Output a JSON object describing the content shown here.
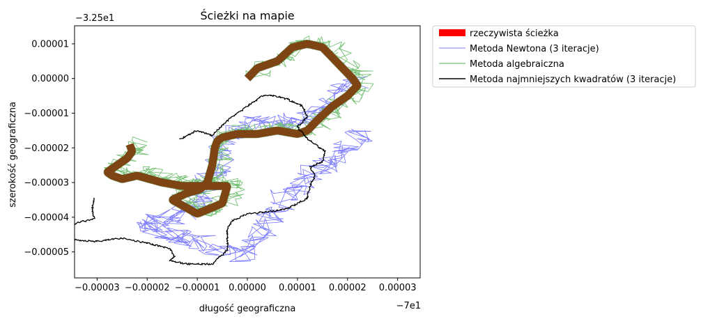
{
  "chart_data": {
    "type": "line",
    "title": "Ścieżki na mapie",
    "xlabel": "długość geograficzna",
    "ylabel": "szerokość geograficzna",
    "x_offset_label": "−7e1",
    "y_offset_label": "−3.25e1",
    "xlim": [
      -3.45e-05,
      3.45e-05
    ],
    "ylim": [
      -5.75e-05,
      1.52e-05
    ],
    "x_ticks": [
      -3e-05,
      -2e-05,
      -1e-05,
      0,
      1e-05,
      2e-05,
      3e-05
    ],
    "x_tick_labels": [
      "−0.00003",
      "−0.00002",
      "−0.00001",
      "0.00000",
      "0.00001",
      "0.00002",
      "0.00003"
    ],
    "y_ticks": [
      1e-05,
      0,
      -1e-05,
      -2e-05,
      -3e-05,
      -4e-05,
      -5e-05
    ],
    "y_tick_labels": [
      "0.00001",
      "0.00000",
      "−0.00001",
      "−0.00002",
      "−0.00003",
      "−0.00004",
      "−0.00005"
    ],
    "grid": false,
    "legend_position": "outside-right",
    "series": [
      {
        "name": "rzeczywista ścieżka",
        "color": "#ff0000",
        "style": "thick",
        "x": [
          0.0,
          2e-06,
          6e-06,
          9e-06,
          1.2e-05,
          1.5e-05,
          1.7e-05,
          1.9e-05,
          2.1e-05,
          2.2e-05,
          2e-05,
          1.7e-05,
          1.4e-05,
          1.2e-05,
          1e-05,
          6e-06,
          2e-06,
          -2e-06,
          -5e-06,
          -6e-06,
          -6.5e-06,
          -7e-06,
          -8e-06,
          -9.5e-06,
          -1.2e-05,
          -1.5e-05,
          -1e-05,
          -5e-06,
          -4e-06,
          -9e-06,
          -1.3e-05,
          -1.7e-05,
          -2.2e-05,
          -2.5e-05,
          -2.7e-05,
          -2.8e-05,
          -2.6e-05,
          -2.4e-05,
          -2.3e-05,
          -2.35e-05
        ],
        "y": [
          0.0,
          3e-06,
          5e-06,
          9e-06,
          1e-05,
          9e-06,
          6e-06,
          3e-06,
          0.0,
          -2e-06,
          -5e-06,
          -8e-06,
          -1.2e-05,
          -1.5e-05,
          -1.6e-05,
          -1.5e-05,
          -1.6e-05,
          -1.6e-05,
          -1.7e-05,
          -1.8e-05,
          -2e-05,
          -2.5e-05,
          -3e-05,
          -3.2e-05,
          -3.3e-05,
          -3.5e-05,
          -3.9e-05,
          -3.6e-05,
          -3.1e-05,
          -3.1e-05,
          -3.1e-05,
          -3e-05,
          -2.8e-05,
          -2.9e-05,
          -2.8e-05,
          -2.7e-05,
          -2.5e-05,
          -2.3e-05,
          -2.1e-05,
          -1.9e-05
        ]
      },
      {
        "name": "Metoda Newtona (3 iteracje)",
        "color": "#7f7fff",
        "style": "noisy",
        "x": [
          2e-05,
          1.6e-05,
          1.3e-05,
          1e-05,
          6e-06,
          2e-06,
          -1e-06,
          -3e-06,
          -6e-06,
          -7e-06,
          -8e-06,
          -9.5e-06,
          -1.1e-05,
          -1.5e-05,
          -2e-05,
          -2.3e-05,
          -1.8e-05,
          -1.2e-05,
          -7e-06,
          -3e-06,
          0.0,
          2e-06,
          4e-06,
          6e-06,
          1e-05,
          1.4e-05,
          1.8e-05,
          2.2e-05
        ],
        "y": [
          -2e-06,
          -6e-06,
          -1e-05,
          -1.3e-05,
          -1.4e-05,
          -1.4e-05,
          -1.4e-05,
          -1.6e-05,
          -1.9e-05,
          -2.4e-05,
          -2.8e-05,
          -3.1e-05,
          -3.6e-05,
          -4e-05,
          -4.2e-05,
          -4.4e-05,
          -4.6e-05,
          -4.8e-05,
          -5.1e-05,
          -5.2e-05,
          -4.8e-05,
          -4.3e-05,
          -3.9e-05,
          -3.4e-05,
          -3e-05,
          -2.6e-05,
          -2.2e-05,
          -1.7e-05
        ]
      },
      {
        "name": "Metoda algebraiczna",
        "color": "#76c176",
        "style": "noisy",
        "x": [
          0.0,
          2e-06,
          6e-06,
          9e-06,
          1.2e-05,
          1.5e-05,
          1.7e-05,
          1.9e-05,
          2.1e-05,
          2.2e-05,
          2e-05,
          1.7e-05,
          1.4e-05,
          1.2e-05,
          1e-05,
          6e-06,
          2e-06,
          -2e-06,
          -5e-06,
          -6e-06,
          -6.5e-06,
          -7e-06,
          -8e-06,
          -9.5e-06,
          -1.2e-05,
          -1.5e-05,
          -1e-05,
          -5e-06,
          -4e-06,
          -9e-06,
          -1.3e-05,
          -1.7e-05,
          -2.2e-05,
          -2.5e-05,
          -2.7e-05,
          -2.8e-05,
          -2.6e-05,
          -2.4e-05,
          -2.3e-05,
          -2.35e-05
        ],
        "y": [
          0.0,
          3e-06,
          5e-06,
          9e-06,
          1e-05,
          9e-06,
          6e-06,
          3e-06,
          0.0,
          -2e-06,
          -5e-06,
          -8e-06,
          -1.2e-05,
          -1.5e-05,
          -1.6e-05,
          -1.5e-05,
          -1.6e-05,
          -1.6e-05,
          -1.7e-05,
          -1.8e-05,
          -2e-05,
          -2.5e-05,
          -3e-05,
          -3.2e-05,
          -3.3e-05,
          -3.5e-05,
          -3.9e-05,
          -3.6e-05,
          -3.1e-05,
          -3.1e-05,
          -3.1e-05,
          -3e-05,
          -2.8e-05,
          -2.9e-05,
          -2.8e-05,
          -2.7e-05,
          -2.5e-05,
          -2.3e-05,
          -2.1e-05,
          -1.9e-05
        ]
      },
      {
        "name": "Metoda najmniejszych kwadratów (3 iteracje)",
        "color": "#000000",
        "style": "thin",
        "x": [
          -3.05e-05,
          -3.1e-05,
          -3.05e-05,
          -3.4e-05,
          -3.55e-05,
          -3.45e-05,
          -3e-05,
          -2.5e-05,
          -2e-05,
          -1.55e-05,
          -1.45e-05,
          -1.55e-05,
          -1.2e-05,
          -7e-06,
          -4e-06,
          -4e-06,
          -3e-06,
          0.0,
          4e-06,
          8e-06,
          1.2e-05,
          1.25e-05,
          1.35e-05,
          1.25e-05,
          1.5e-05,
          1.55e-05,
          1.2e-05,
          1e-05,
          1.2e-05,
          1.1e-05,
          8e-06,
          5.5e-06,
          3e-06,
          0.0,
          -3e-06,
          -5e-06,
          -7e-06,
          -1e-05,
          -1.35e-05
        ],
        "y": [
          -3.45e-05,
          -3.75e-05,
          -4.05e-05,
          -4.15e-05,
          -4.35e-05,
          -4.65e-05,
          -4.7e-05,
          -4.6e-05,
          -4.75e-05,
          -4.9e-05,
          -5.15e-05,
          -5.25e-05,
          -5.35e-05,
          -5.35e-05,
          -4.95e-05,
          -4.35e-05,
          -4.1e-05,
          -3.9e-05,
          -3.85e-05,
          -3.75e-05,
          -3.45e-05,
          -3.1e-05,
          -2.8e-05,
          -2.55e-05,
          -2.4e-05,
          -2.1e-05,
          -1.75e-05,
          -1.4e-05,
          -1.1e-05,
          -8e-06,
          -6e-06,
          -5e-06,
          -5e-06,
          -8e-06,
          -1.1e-05,
          -1.35e-05,
          -1.65e-05,
          -1.5e-05,
          -1.75e-05
        ]
      }
    ]
  }
}
